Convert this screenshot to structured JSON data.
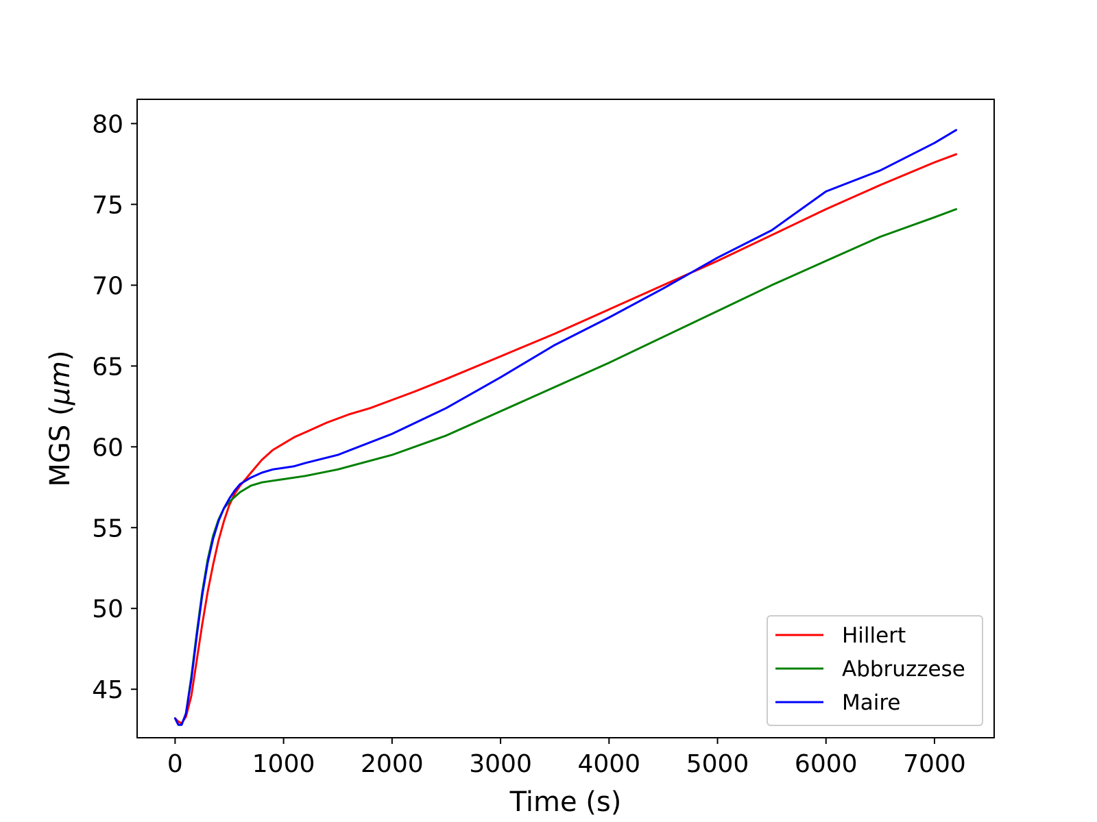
{
  "chart_data": {
    "type": "line",
    "xlabel": "Time (s)",
    "ylabel": "MGS (",
    "ylabel_unit": "μm",
    "ylabel_close": ")",
    "xlim": [
      -350,
      7550
    ],
    "ylim": [
      42.0,
      81.5
    ],
    "xticks": [
      0,
      1000,
      2000,
      3000,
      4000,
      5000,
      6000,
      7000
    ],
    "yticks": [
      45,
      50,
      55,
      60,
      65,
      70,
      75,
      80
    ],
    "grid": false,
    "legend_position": "lower-right",
    "series": [
      {
        "name": "Hillert",
        "color": "#ff0000",
        "x": [
          0,
          30,
          60,
          100,
          150,
          200,
          250,
          300,
          350,
          400,
          450,
          500,
          550,
          600,
          650,
          700,
          800,
          900,
          1000,
          1100,
          1200,
          1400,
          1600,
          1800,
          2000,
          2200,
          2500,
          3000,
          3500,
          4000,
          4500,
          5000,
          5500,
          6000,
          6500,
          7000,
          7200
        ],
        "y": [
          43.2,
          43.0,
          42.9,
          43.3,
          44.6,
          46.8,
          49.0,
          51.0,
          52.7,
          54.2,
          55.4,
          56.4,
          57.1,
          57.6,
          58.0,
          58.4,
          59.2,
          59.8,
          60.2,
          60.6,
          60.9,
          61.5,
          62.0,
          62.4,
          62.9,
          63.4,
          64.2,
          65.6,
          67.0,
          68.5,
          70.0,
          71.5,
          73.1,
          74.7,
          76.2,
          77.6,
          78.1
        ]
      },
      {
        "name": "Abbruzzese",
        "color": "#008000",
        "x": [
          0,
          30,
          60,
          100,
          150,
          200,
          250,
          300,
          350,
          400,
          450,
          500,
          550,
          600,
          650,
          700,
          800,
          900,
          1000,
          1200,
          1500,
          2000,
          2500,
          3000,
          3500,
          4000,
          4500,
          5000,
          5500,
          6000,
          6500,
          7000,
          7200
        ],
        "y": [
          43.2,
          42.8,
          42.8,
          43.5,
          45.8,
          48.5,
          51.0,
          53.0,
          54.5,
          55.5,
          56.2,
          56.6,
          56.9,
          57.2,
          57.4,
          57.6,
          57.8,
          57.9,
          58.0,
          58.2,
          58.6,
          59.5,
          60.7,
          62.2,
          63.7,
          65.2,
          66.8,
          68.4,
          70.0,
          71.5,
          73.0,
          74.2,
          74.7
        ]
      },
      {
        "name": "Maire",
        "color": "#0000ff",
        "x": [
          0,
          30,
          60,
          100,
          150,
          200,
          250,
          300,
          350,
          400,
          450,
          500,
          550,
          600,
          650,
          700,
          800,
          900,
          1000,
          1100,
          1200,
          1500,
          2000,
          2500,
          3000,
          3500,
          4000,
          4500,
          5000,
          5500,
          6000,
          6500,
          7000,
          7200
        ],
        "y": [
          43.2,
          42.8,
          42.8,
          43.5,
          45.6,
          48.3,
          50.8,
          52.8,
          54.3,
          55.4,
          56.2,
          56.8,
          57.3,
          57.7,
          57.9,
          58.1,
          58.4,
          58.6,
          58.7,
          58.8,
          59.0,
          59.5,
          60.8,
          62.4,
          64.3,
          66.3,
          68.0,
          69.8,
          71.7,
          73.4,
          75.8,
          77.1,
          78.8,
          79.6
        ]
      }
    ]
  }
}
